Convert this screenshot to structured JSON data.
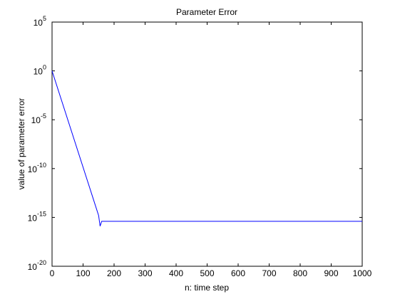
{
  "chart_data": {
    "type": "line",
    "title": "Parameter Error",
    "xlabel": "n: time step",
    "ylabel": "value of parameter error",
    "xlim": [
      0,
      1000
    ],
    "ylim_exponent": [
      -20,
      5
    ],
    "yscale": "log",
    "grid": false,
    "x_ticks": [
      "0",
      "100",
      "200",
      "300",
      "400",
      "500",
      "600",
      "700",
      "800",
      "900",
      "1000"
    ],
    "y_ticks": [
      {
        "base": "10",
        "exp": "5"
      },
      {
        "base": "10",
        "exp": "0"
      },
      {
        "base": "10",
        "exp": "-5"
      },
      {
        "base": "10",
        "exp": "-10"
      },
      {
        "base": "10",
        "exp": "-15"
      },
      {
        "base": "10",
        "exp": "-20"
      }
    ],
    "series": [
      {
        "color": "#0000ff",
        "x": [
          0,
          150,
          155,
          160,
          1000
        ],
        "y_exponent": [
          0,
          -14.8,
          -15.9,
          -15.4,
          -15.4
        ]
      }
    ]
  }
}
